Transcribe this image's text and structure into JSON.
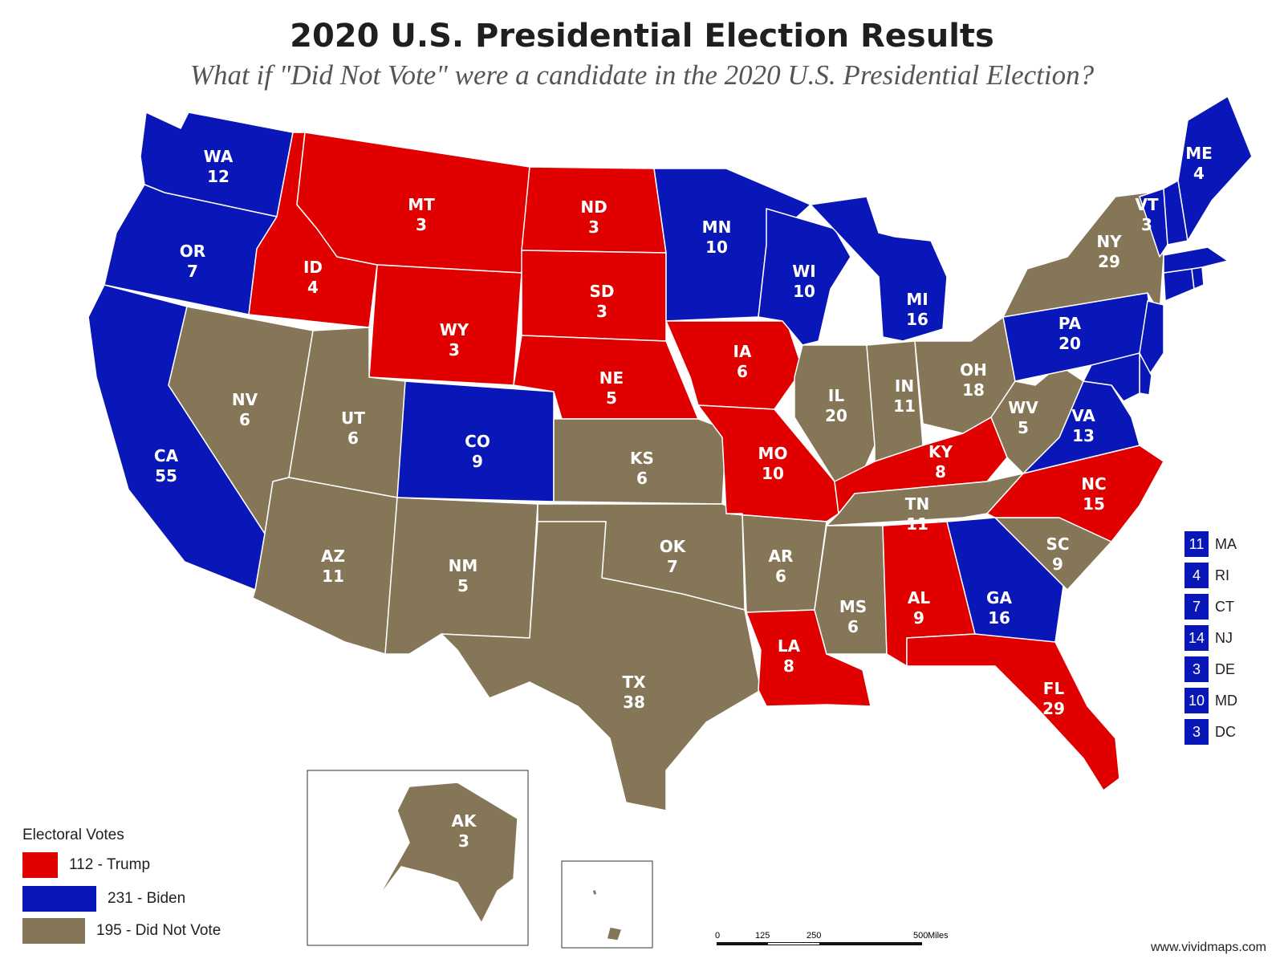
{
  "title": "2020 U.S. Presidential Election Results",
  "subtitle": "What if \"Did Not Vote\" were a candidate in the 2020 U.S. Presidential Election?",
  "colors": {
    "trump": "#e00000",
    "biden": "#0a17b8",
    "dnv": "#857658"
  },
  "states": [
    {
      "abbr": "WA",
      "votes": "12",
      "winner": "biden"
    },
    {
      "abbr": "OR",
      "votes": "7",
      "winner": "biden"
    },
    {
      "abbr": "CA",
      "votes": "55",
      "winner": "biden"
    },
    {
      "abbr": "ID",
      "votes": "4",
      "winner": "trump"
    },
    {
      "abbr": "NV",
      "votes": "6",
      "winner": "dnv"
    },
    {
      "abbr": "MT",
      "votes": "3",
      "winner": "trump"
    },
    {
      "abbr": "WY",
      "votes": "3",
      "winner": "trump"
    },
    {
      "abbr": "UT",
      "votes": "6",
      "winner": "dnv"
    },
    {
      "abbr": "AZ",
      "votes": "11",
      "winner": "dnv"
    },
    {
      "abbr": "CO",
      "votes": "9",
      "winner": "biden"
    },
    {
      "abbr": "NM",
      "votes": "5",
      "winner": "dnv"
    },
    {
      "abbr": "ND",
      "votes": "3",
      "winner": "trump"
    },
    {
      "abbr": "SD",
      "votes": "3",
      "winner": "trump"
    },
    {
      "abbr": "NE",
      "votes": "5",
      "winner": "trump"
    },
    {
      "abbr": "KS",
      "votes": "6",
      "winner": "dnv"
    },
    {
      "abbr": "OK",
      "votes": "7",
      "winner": "dnv"
    },
    {
      "abbr": "TX",
      "votes": "38",
      "winner": "dnv"
    },
    {
      "abbr": "MN",
      "votes": "10",
      "winner": "biden"
    },
    {
      "abbr": "IA",
      "votes": "6",
      "winner": "trump"
    },
    {
      "abbr": "MO",
      "votes": "10",
      "winner": "trump"
    },
    {
      "abbr": "AR",
      "votes": "6",
      "winner": "dnv"
    },
    {
      "abbr": "LA",
      "votes": "8",
      "winner": "trump"
    },
    {
      "abbr": "WI",
      "votes": "10",
      "winner": "biden"
    },
    {
      "abbr": "IL",
      "votes": "20",
      "winner": "dnv"
    },
    {
      "abbr": "MI",
      "votes": "16",
      "winner": "biden"
    },
    {
      "abbr": "IN",
      "votes": "11",
      "winner": "dnv"
    },
    {
      "abbr": "OH",
      "votes": "18",
      "winner": "dnv"
    },
    {
      "abbr": "KY",
      "votes": "8",
      "winner": "trump"
    },
    {
      "abbr": "TN",
      "votes": "11",
      "winner": "dnv"
    },
    {
      "abbr": "MS",
      "votes": "6",
      "winner": "dnv"
    },
    {
      "abbr": "AL",
      "votes": "9",
      "winner": "trump"
    },
    {
      "abbr": "GA",
      "votes": "16",
      "winner": "biden"
    },
    {
      "abbr": "FL",
      "votes": "29",
      "winner": "trump"
    },
    {
      "abbr": "SC",
      "votes": "9",
      "winner": "dnv"
    },
    {
      "abbr": "NC",
      "votes": "15",
      "winner": "trump"
    },
    {
      "abbr": "VA",
      "votes": "13",
      "winner": "biden"
    },
    {
      "abbr": "WV",
      "votes": "5",
      "winner": "dnv"
    },
    {
      "abbr": "PA",
      "votes": "20",
      "winner": "biden"
    },
    {
      "abbr": "NY",
      "votes": "29",
      "winner": "dnv"
    },
    {
      "abbr": "VT",
      "votes": "3",
      "winner": "biden"
    },
    {
      "abbr": "ME",
      "votes": "4",
      "winner": "biden"
    },
    {
      "abbr": "AK",
      "votes": "3",
      "winner": "dnv"
    },
    {
      "abbr": "HI",
      "votes": "",
      "winner": "dnv"
    }
  ],
  "northeast_list": [
    {
      "votes": "11",
      "abbr": "MA"
    },
    {
      "votes": "4",
      "abbr": "RI"
    },
    {
      "votes": "7",
      "abbr": "CT"
    },
    {
      "votes": "14",
      "abbr": "NJ"
    },
    {
      "votes": "3",
      "abbr": "DE"
    },
    {
      "votes": "10",
      "abbr": "MD"
    },
    {
      "votes": "3",
      "abbr": "DC"
    }
  ],
  "legend": {
    "title": "Electoral Votes",
    "items": [
      {
        "label": "112 - Trump",
        "color": "#e00000"
      },
      {
        "label": "231 - Biden",
        "color": "#0a17b8"
      },
      {
        "label": "195 - Did Not Vote",
        "color": "#857658"
      }
    ]
  },
  "scale_bar": {
    "ticks": [
      "0",
      "125",
      "250",
      "500"
    ],
    "unit": "Miles"
  },
  "credit": "www.vividmaps.com"
}
